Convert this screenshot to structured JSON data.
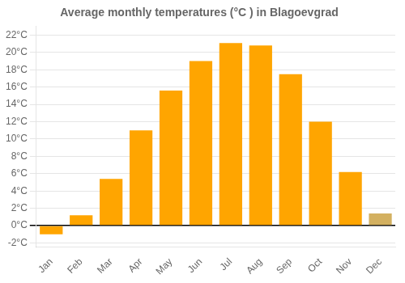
{
  "chart_data": {
    "type": "bar",
    "title": "Average monthly temperatures (°C ) in Blagoevgrad",
    "categories": [
      "Jan",
      "Feb",
      "Mar",
      "Apr",
      "May",
      "Jun",
      "Jul",
      "Aug",
      "Sep",
      "Oct",
      "Nov",
      "Dec"
    ],
    "values": [
      -1.0,
      1.2,
      5.4,
      11.0,
      15.6,
      19.0,
      21.1,
      20.8,
      17.5,
      12.0,
      6.2,
      1.4
    ],
    "colors": [
      "#FFA500",
      "#FFA500",
      "#FFA500",
      "#FFA500",
      "#FFA500",
      "#FFA500",
      "#FFA500",
      "#FFA500",
      "#FFA500",
      "#FFA500",
      "#FFA500",
      "#D3B060"
    ],
    "ylim": [
      -2.5,
      23
    ],
    "yticks": [
      {
        "value": -2,
        "label": "-2°C"
      },
      {
        "value": 0,
        "label": "0°C"
      },
      {
        "value": 2,
        "label": "2°C"
      },
      {
        "value": 4,
        "label": "4°C"
      },
      {
        "value": 6,
        "label": "6°C"
      },
      {
        "value": 8,
        "label": "8°C"
      },
      {
        "value": 10,
        "label": "10°C"
      },
      {
        "value": 12,
        "label": "12°C"
      },
      {
        "value": 14,
        "label": "14°C"
      },
      {
        "value": 16,
        "label": "16°C"
      },
      {
        "value": 18,
        "label": "18°C"
      },
      {
        "value": 20,
        "label": "20°C"
      },
      {
        "value": 22,
        "label": "22°C"
      }
    ],
    "grid": true
  }
}
